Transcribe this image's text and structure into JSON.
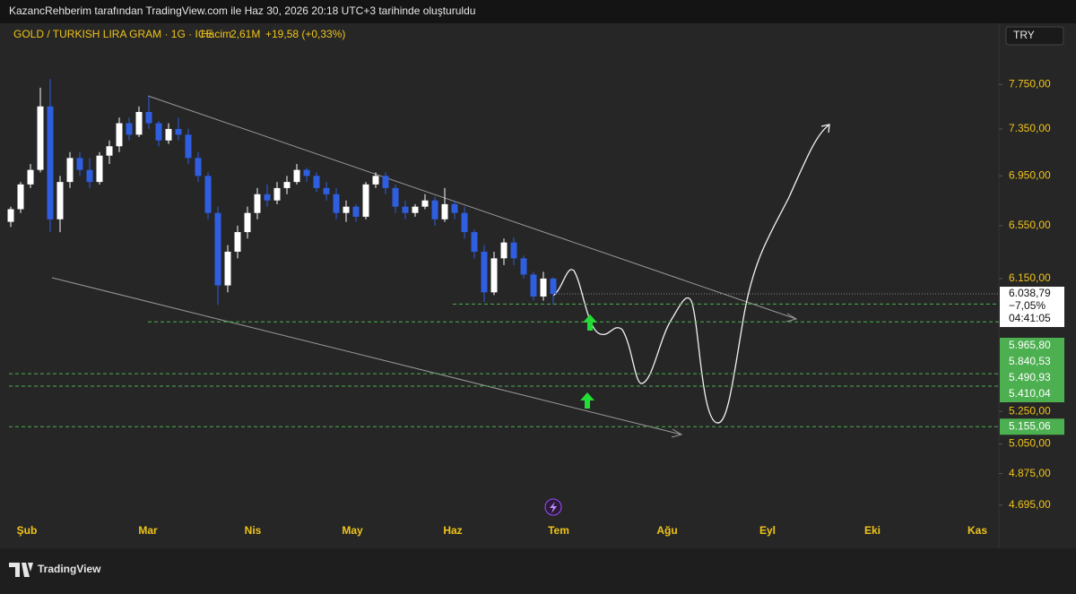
{
  "header": {
    "credit": "KazancRehberim tarafından TradingView.com ile Haz 30, 2026 20:18 UTC+3 tarihinde oluşturuldu",
    "symbol": "GOLD / TURKISH LIRA GRAM · 1G · ICE",
    "volume_label": "Hacim",
    "volume": "2,61M",
    "change": "+19,58 (+0,33%)",
    "currency": "TRY"
  },
  "chart_data": {
    "type": "candlestick",
    "log_scale": true,
    "ylim": [
      4600,
      8125
    ],
    "yticks": [
      {
        "value": 7750,
        "label": "7.750,00"
      },
      {
        "value": 7350,
        "label": "7.350,00"
      },
      {
        "value": 6950,
        "label": "6.950,00"
      },
      {
        "value": 6550,
        "label": "6.550,00"
      },
      {
        "value": 6150,
        "label": "6.150,00"
      },
      {
        "value": 5250,
        "label": "5.250,00"
      },
      {
        "value": 5050,
        "label": "5.050,00"
      },
      {
        "value": 4875,
        "label": "4.875,00"
      },
      {
        "value": 4695,
        "label": "4.695,00"
      }
    ],
    "months": [
      "Şub",
      "Mar",
      "Nis",
      "May",
      "Haz",
      "Tem",
      "Ağu",
      "Eyl",
      "Eki",
      "Kas"
    ],
    "open": [
      6580,
      6680,
      6880,
      7000,
      7550,
      6600,
      6900,
      7100,
      7000,
      6900,
      7120,
      7200,
      7400,
      7300,
      7500,
      7400,
      7250,
      7350,
      7300,
      7100,
      6950,
      6650,
      6100,
      6350,
      6500,
      6650,
      6800,
      6750,
      6850,
      6900,
      7000,
      6950,
      6850,
      6800,
      6650,
      6700,
      6620,
      6880,
      6950,
      6850,
      6700,
      6650,
      6700,
      6750,
      6600,
      6720,
      6650,
      6500,
      6350,
      6050,
      6300,
      6420,
      6300,
      6180,
      6020,
      6150
    ],
    "high": [
      6700,
      6900,
      7050,
      7720,
      7800,
      6950,
      7150,
      7150,
      7100,
      7150,
      7250,
      7450,
      7450,
      7550,
      7650,
      7420,
      7400,
      7450,
      7350,
      7150,
      6980,
      6700,
      6400,
      6550,
      6700,
      6850,
      6880,
      6900,
      6950,
      7050,
      7020,
      6980,
      6900,
      6850,
      6750,
      6720,
      6900,
      6980,
      6980,
      6880,
      6750,
      6720,
      6800,
      6780,
      6850,
      6750,
      6700,
      6520,
      6400,
      6350,
      6450,
      6460,
      6320,
      6200,
      6200,
      6160
    ],
    "low": [
      6540,
      6650,
      6850,
      6980,
      6500,
      6500,
      6850,
      6950,
      6850,
      6880,
      7050,
      7150,
      7250,
      7280,
      7350,
      7200,
      7220,
      7250,
      7050,
      6900,
      6600,
      5960,
      6050,
      6300,
      6450,
      6600,
      6700,
      6720,
      6800,
      6880,
      6900,
      6820,
      6750,
      6600,
      6580,
      6580,
      6600,
      6850,
      6800,
      6650,
      6600,
      6620,
      6680,
      6550,
      6580,
      6600,
      6450,
      6300,
      5980,
      6030,
      6250,
      6250,
      6150,
      5990,
      5990,
      5960
    ],
    "close": [
      6680,
      6880,
      7000,
      7550,
      6600,
      6900,
      7100,
      7000,
      6900,
      7120,
      7200,
      7400,
      7300,
      7500,
      7400,
      7250,
      7350,
      7300,
      7100,
      6950,
      6650,
      6100,
      6350,
      6500,
      6650,
      6800,
      6750,
      6850,
      6900,
      7000,
      6950,
      6850,
      6800,
      6650,
      6700,
      6620,
      6880,
      6950,
      6850,
      6700,
      6650,
      6700,
      6750,
      6600,
      6720,
      6650,
      6500,
      6350,
      6050,
      6300,
      6420,
      6300,
      6180,
      6020,
      6150,
      6038.79
    ],
    "up_color": "#ffffff",
    "down_color": "#2f5fe0",
    "last_price": {
      "value": 6038.79,
      "label": "6.038,79"
    },
    "last_change": "−7,05%",
    "countdown": "04:41:05",
    "levels": [
      {
        "value": 5965.8,
        "label": "5.965,80"
      },
      {
        "value": 5840.53,
        "label": "5.840,53"
      },
      {
        "value": 5490.93,
        "label": "5.490,93"
      },
      {
        "value": 5410.04,
        "label": "5.410,04"
      },
      {
        "value": 5155.06,
        "label": "5.155,06"
      }
    ],
    "level_color": "#4caf50"
  },
  "footer": {
    "logo": "TradingView"
  }
}
